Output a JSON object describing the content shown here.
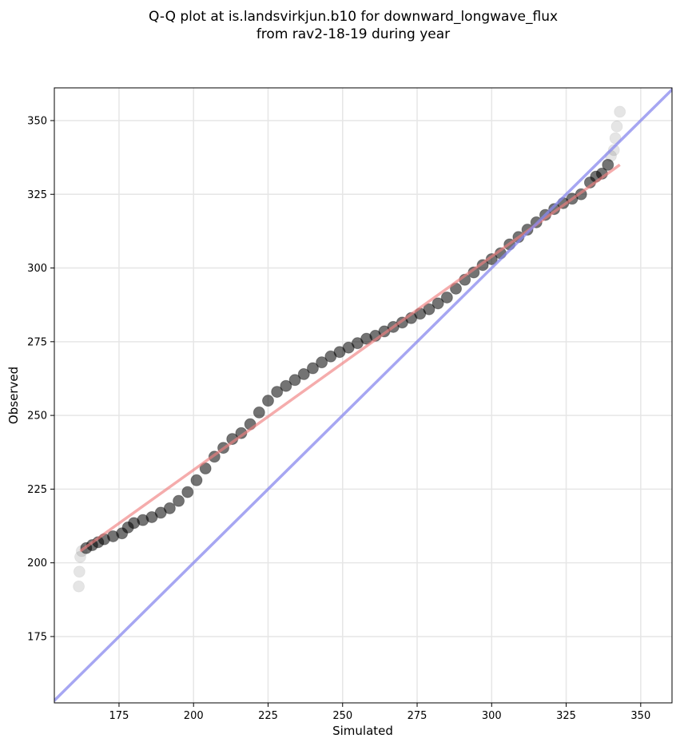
{
  "chart_data": {
    "type": "scatter",
    "title": [
      "Q-Q plot at is.landsvirkjun.b10 for downward_longwave_flux",
      "from rav2-18-19 during year"
    ],
    "xlabel": "Simulated",
    "ylabel": "Observed",
    "xlim": [
      153.3,
      360.5
    ],
    "ylim": [
      152.5,
      361.1
    ],
    "xticks": [
      175,
      200,
      225,
      250,
      275,
      300,
      325,
      350
    ],
    "yticks": [
      175,
      200,
      225,
      250,
      275,
      300,
      325,
      350
    ],
    "grid": true,
    "point_color": "#000000",
    "x": [
      161.5,
      161.7,
      162,
      162.5,
      164,
      166,
      168,
      170,
      173,
      176,
      178,
      180,
      183,
      186,
      189,
      192,
      195,
      198,
      201,
      204,
      207,
      210,
      213,
      216,
      219,
      222,
      225,
      228,
      231,
      234,
      237,
      240,
      243,
      246,
      249,
      252,
      255,
      258,
      261,
      264,
      267,
      270,
      273,
      276,
      279,
      282,
      285,
      288,
      291,
      294,
      297,
      300,
      303,
      306,
      309,
      312,
      315,
      318,
      321,
      324,
      327,
      330,
      333,
      335,
      337,
      339,
      340,
      341,
      341.5,
      342,
      343
    ],
    "y": [
      192,
      197,
      202,
      204,
      205,
      206,
      207,
      208,
      209,
      210,
      212,
      213.5,
      214.5,
      215.5,
      217,
      218.5,
      221,
      224,
      228,
      232,
      236,
      239,
      242,
      244,
      247,
      251,
      255,
      258,
      260,
      262,
      264,
      266,
      268,
      270,
      271.5,
      273,
      274.5,
      276,
      277,
      278.5,
      280,
      281.5,
      283,
      284.5,
      286,
      288,
      290,
      293,
      296,
      298.5,
      301,
      303,
      305,
      308,
      310.5,
      313,
      315.5,
      318,
      320,
      322,
      323.5,
      325,
      329,
      331,
      332,
      335,
      338,
      340,
      344,
      348,
      353
    ],
    "fit_line": {
      "x": [
        162,
        343
      ],
      "y": [
        204,
        335
      ],
      "color": "#f08080"
    },
    "identity_line": {
      "color": "#8888ee"
    }
  }
}
